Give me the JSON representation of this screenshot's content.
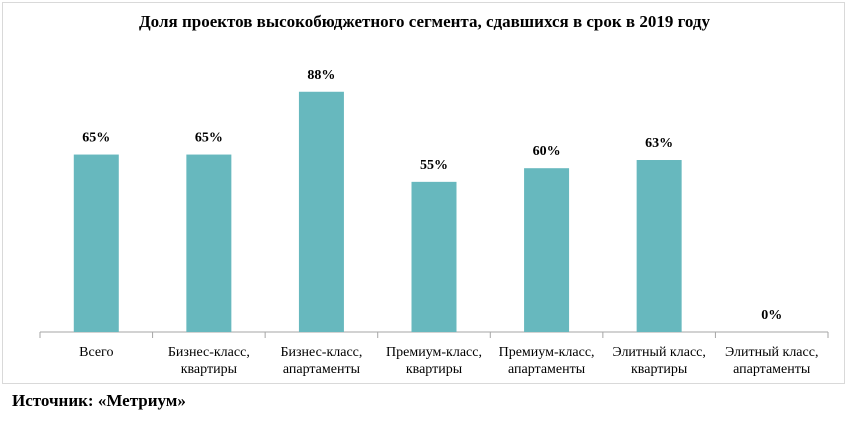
{
  "chart_data": {
    "type": "bar",
    "title": "Доля проектов высокобюджетного сегмента, сдавшихся в срок в 2019 году",
    "categories": [
      [
        "Всего"
      ],
      [
        "Бизнес-класс,",
        "квартиры"
      ],
      [
        "Бизнес-класс,",
        "апартаменты"
      ],
      [
        "Премиум-класс,",
        "квартиры"
      ],
      [
        "Премиум-класс,",
        "апартаменты"
      ],
      [
        "Элитный класс,",
        "квартиры"
      ],
      [
        "Элитный класс,",
        "апартаменты"
      ]
    ],
    "values": [
      65,
      65,
      88,
      55,
      60,
      63,
      0
    ],
    "value_labels": [
      "65%",
      "65%",
      "88%",
      "55%",
      "60%",
      "63%",
      "0%"
    ],
    "ylim": [
      0,
      100
    ],
    "grid": false,
    "bar_color": "#67b8be",
    "axis_color": "#a6a6a6"
  },
  "source": "Источник: «Метриум»"
}
